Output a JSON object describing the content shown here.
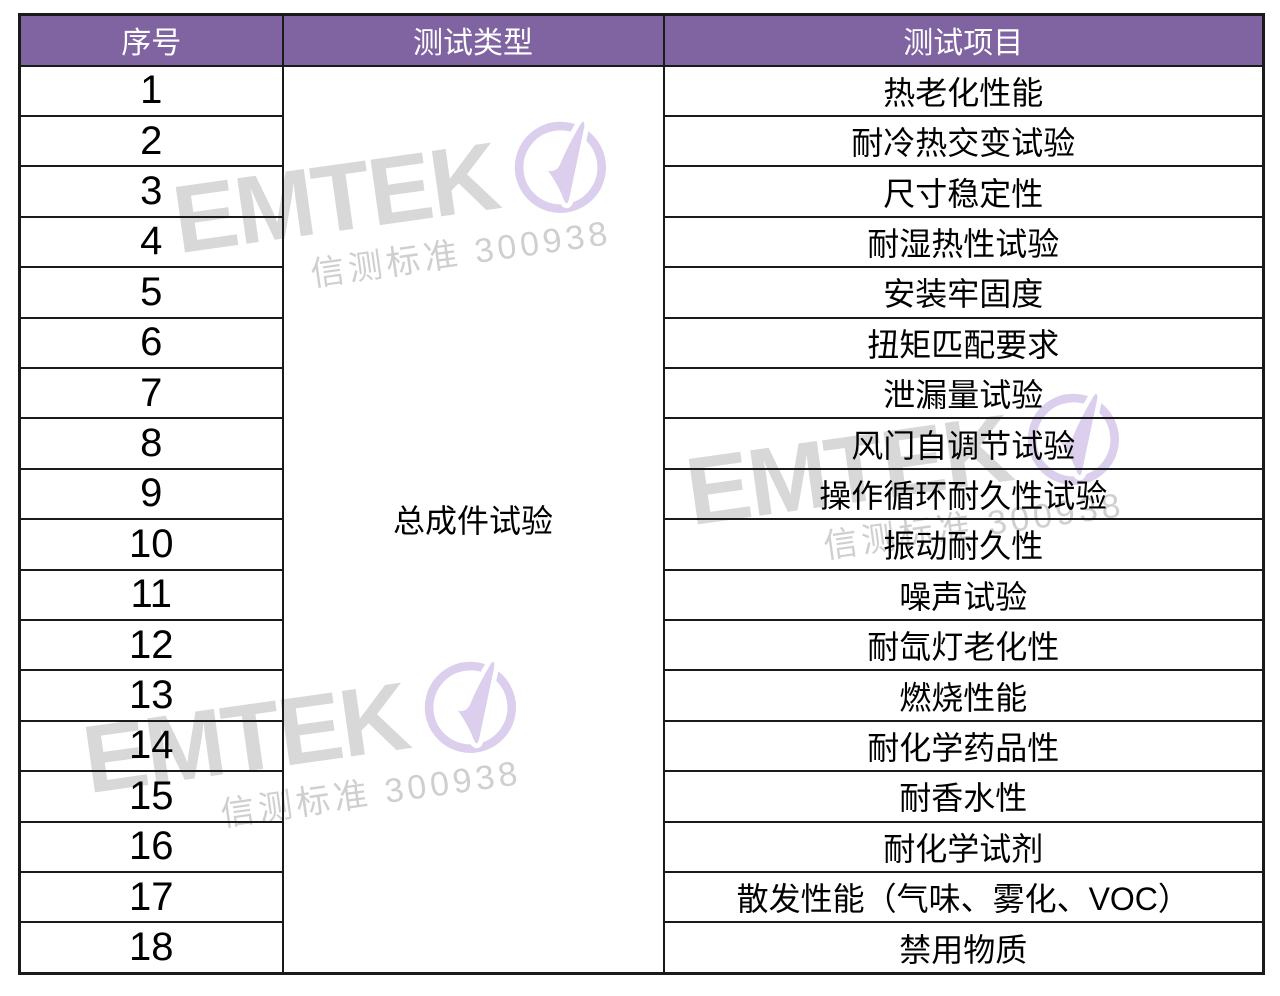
{
  "table": {
    "headers": [
      "序号",
      "测试类型",
      "测试项目"
    ],
    "test_type": "总成件试验",
    "rows": [
      {
        "no": "1",
        "item": "热老化性能"
      },
      {
        "no": "2",
        "item": "耐冷热交变试验"
      },
      {
        "no": "3",
        "item": "尺寸稳定性"
      },
      {
        "no": "4",
        "item": "耐湿热性试验"
      },
      {
        "no": "5",
        "item": "安装牢固度"
      },
      {
        "no": "6",
        "item": "扭矩匹配要求"
      },
      {
        "no": "7",
        "item": "泄漏量试验"
      },
      {
        "no": "8",
        "item": "风门自调节试验"
      },
      {
        "no": "9",
        "item": "操作循环耐久性试验"
      },
      {
        "no": "10",
        "item": "振动耐久性"
      },
      {
        "no": "11",
        "item": "噪声试验"
      },
      {
        "no": "12",
        "item": "耐氙灯老化性"
      },
      {
        "no": "13",
        "item": "燃烧性能"
      },
      {
        "no": "14",
        "item": "耐化学药品性"
      },
      {
        "no": "15",
        "item": "耐香水性"
      },
      {
        "no": "16",
        "item": "耐化学试剂"
      },
      {
        "no": "17",
        "item": "散发性能（气味、雾化、VOC）"
      },
      {
        "no": "18",
        "item": "禁用物质"
      }
    ]
  },
  "watermark": {
    "brand": "EMTEK",
    "subtext": "信测标准 300938",
    "logo_icon": "check-circle-logo"
  },
  "colors": {
    "header_bg": "#8064A2",
    "header_text": "#ffffff",
    "border": "#1a1a1a",
    "body_text": "#000000",
    "watermark_gray": "#d8d8d8",
    "watermark_lavender": "#dccfee"
  }
}
